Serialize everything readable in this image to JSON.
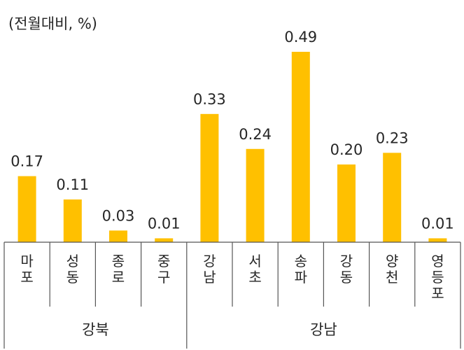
{
  "chart_data": {
    "type": "bar",
    "unit_label": "(전월대비, %)",
    "categories": [
      "마포",
      "성동",
      "종로",
      "중구",
      "강남",
      "서초",
      "송파",
      "강동",
      "양천",
      "영등포"
    ],
    "values": [
      0.17,
      0.11,
      0.03,
      0.01,
      0.33,
      0.24,
      0.49,
      0.2,
      0.23,
      0.01
    ],
    "value_labels": [
      "0.17",
      "0.11",
      "0.03",
      "0.01",
      "0.33",
      "0.24",
      "0.49",
      "0.20",
      "0.23",
      "0.01"
    ],
    "groups": [
      {
        "name": "강북",
        "count": 4
      },
      {
        "name": "강남",
        "count": 6
      }
    ],
    "bar_color": "#FFC000",
    "ylim": [
      0,
      0.49
    ],
    "grid": false,
    "legend": "none"
  }
}
